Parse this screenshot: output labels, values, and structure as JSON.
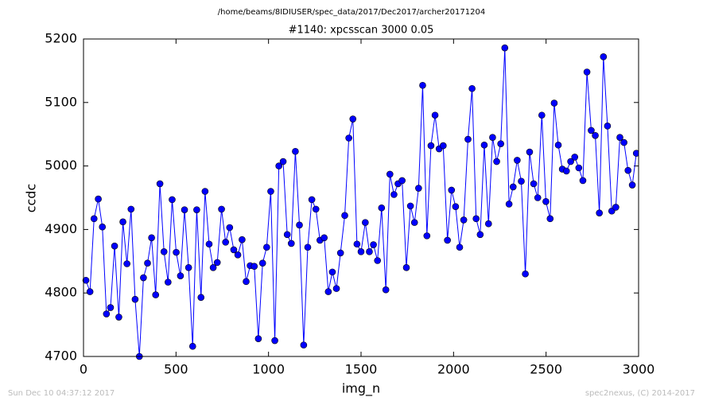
{
  "chart_data": {
    "type": "line",
    "suptitle": "/home/beams/8IDIUSER/spec_data/2017/Dec2017/archer20171204",
    "title": "#1140: xpcsscan 3000 0.05",
    "x_label": "img_n",
    "y_label": "ccdc",
    "footer_left": "Sun Dec 10 04:37:12 2017",
    "footer_right": "spec2nexus, (C) 2014-2017",
    "xlim": [
      0,
      3000
    ],
    "xticks": [
      0,
      500,
      1000,
      1500,
      2000,
      2500,
      3000
    ],
    "ylim": [
      4700,
      5200
    ],
    "yticks": [
      4700,
      4800,
      4900,
      5000,
      5100,
      5200
    ],
    "x": [
      13,
      35,
      57,
      80,
      102,
      124,
      146,
      168,
      191,
      213,
      235,
      257,
      279,
      302,
      324,
      346,
      368,
      390,
      413,
      435,
      457,
      479,
      501,
      524,
      546,
      568,
      590,
      612,
      635,
      657,
      679,
      701,
      723,
      746,
      768,
      790,
      812,
      834,
      857,
      879,
      901,
      923,
      945,
      968,
      990,
      1012,
      1034,
      1056,
      1079,
      1101,
      1123,
      1145,
      1167,
      1190,
      1212,
      1234,
      1256,
      1278,
      1301,
      1323,
      1345,
      1367,
      1389,
      1412,
      1434,
      1456,
      1478,
      1500,
      1523,
      1545,
      1567,
      1589,
      1611,
      1634,
      1656,
      1678,
      1700,
      1722,
      1745,
      1767,
      1789,
      1811,
      1833,
      1856,
      1878,
      1900,
      1922,
      1944,
      1967,
      1989,
      2011,
      2033,
      2055,
      2078,
      2100,
      2122,
      2144,
      2166,
      2189,
      2211,
      2233,
      2255,
      2277,
      2300,
      2322,
      2344,
      2366,
      2388,
      2411,
      2433,
      2455,
      2477,
      2499,
      2522,
      2544,
      2566,
      2588,
      2610,
      2633,
      2655,
      2677,
      2699,
      2721,
      2744,
      2766,
      2788,
      2810,
      2832,
      2855,
      2877,
      2899,
      2921,
      2943,
      2966,
      2988
    ],
    "series": [
      {
        "color": "#0000ff",
        "values": [
          4820,
          4802,
          4917,
          4948,
          4904,
          4767,
          4777,
          4874,
          4762,
          4912,
          4846,
          4932,
          4790,
          4700,
          4824,
          4847,
          4887,
          4797,
          4972,
          4865,
          4817,
          4947,
          4864,
          4827,
          4931,
          4840,
          4716,
          4931,
          4793,
          4960,
          4877,
          4840,
          4848,
          4932,
          4880,
          4903,
          4868,
          4860,
          4884,
          4818,
          4843,
          4842,
          4728,
          4847,
          4872,
          4960,
          4725,
          5000,
          5007,
          4892,
          4878,
          5023,
          4907,
          4718,
          4872,
          4947,
          4932,
          4883,
          4887,
          4802,
          4833,
          4807,
          4863,
          4922,
          5044,
          5074,
          4877,
          4865,
          4911,
          4865,
          4876,
          4851,
          4934,
          4805,
          4987,
          4955,
          4972,
          4977,
          4840,
          4937,
          4911,
          4965,
          5127,
          4890,
          5032,
          5080,
          5027,
          5032,
          4883,
          4962,
          4936,
          4872,
          4915,
          5042,
          5122,
          4917,
          4892,
          5033,
          4909,
          5045,
          5007,
          5035,
          5186,
          4940,
          4967,
          5009,
          4976,
          4830,
          5022,
          4972,
          4950,
          5080,
          4944,
          4917,
          5099,
          5033,
          4995,
          4992,
          5007,
          5014,
          4997,
          4977,
          5148,
          5056,
          5048,
          4926,
          5172,
          5063,
          4929,
          4935,
          5045,
          5037,
          4993,
          4970,
          5020
        ]
      }
    ]
  }
}
